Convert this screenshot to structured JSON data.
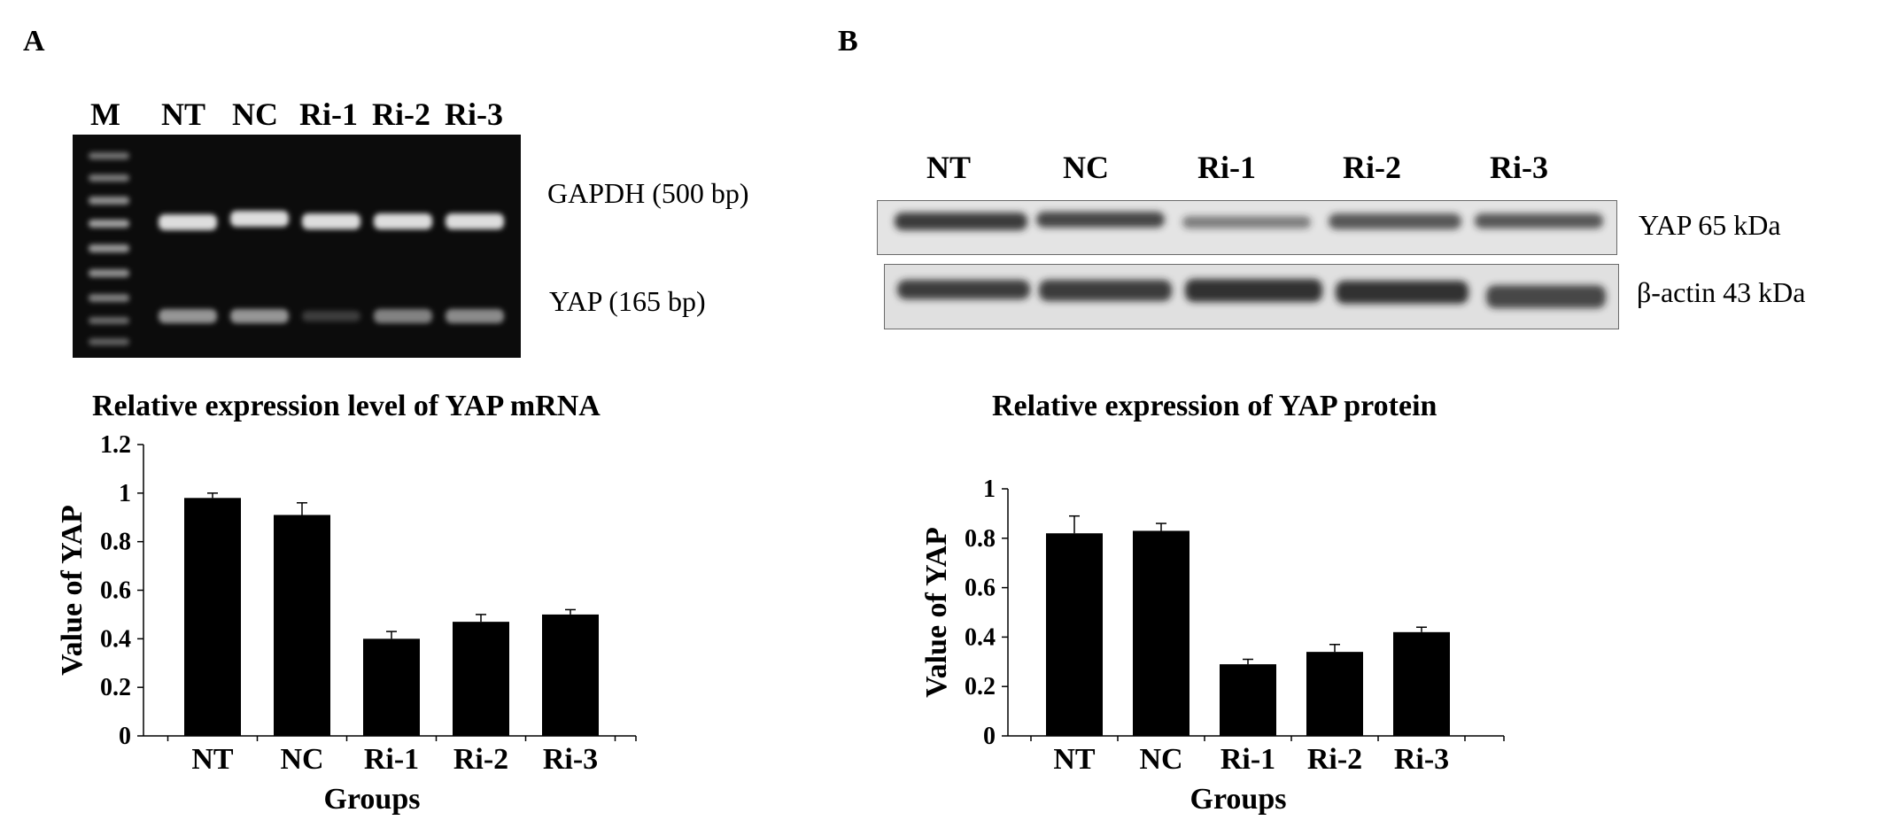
{
  "panelA": {
    "letter": "A",
    "gel": {
      "lanes": [
        "M",
        "NT",
        "NC",
        "Ri-1",
        "Ri-2",
        "Ri-3"
      ],
      "bands": [
        "GAPDH (500 bp)",
        "YAP (165 bp)"
      ]
    }
  },
  "panelB": {
    "letter": "B",
    "blot": {
      "lanes": [
        "NT",
        "NC",
        "Ri-1",
        "Ri-2",
        "Ri-3"
      ],
      "bands": [
        "YAP 65 kDa",
        "β-actin 43 kDa"
      ]
    }
  },
  "chart_data": [
    {
      "type": "bar",
      "title": "Relative expression level of YAP mRNA",
      "xlabel": "Groups",
      "ylabel": "Value of YAP",
      "categories": [
        "NT",
        "NC",
        "Ri-1",
        "Ri-2",
        "Ri-3"
      ],
      "values": [
        0.98,
        0.91,
        0.4,
        0.47,
        0.5
      ],
      "errors": [
        0.02,
        0.05,
        0.03,
        0.03,
        0.02
      ],
      "ylim": [
        0,
        1.2
      ],
      "yticks": [
        "0",
        "0.2",
        "0.4",
        "0.6",
        "0.8",
        "1",
        "1.2"
      ],
      "bar_color": "#000000",
      "grid": false,
      "legend": "none"
    },
    {
      "type": "bar",
      "title": "Relative expression of YAP protein",
      "xlabel": "Groups",
      "ylabel": "Value of YAP",
      "categories": [
        "NT",
        "NC",
        "Ri-1",
        "Ri-2",
        "Ri-3"
      ],
      "values": [
        0.82,
        0.83,
        0.29,
        0.34,
        0.42
      ],
      "errors": [
        0.07,
        0.03,
        0.02,
        0.03,
        0.02
      ],
      "ylim": [
        0,
        1
      ],
      "yticks": [
        "0",
        "0.2",
        "0.4",
        "0.6",
        "0.8",
        "1"
      ],
      "bar_color": "#000000",
      "grid": false,
      "legend": "none"
    }
  ]
}
